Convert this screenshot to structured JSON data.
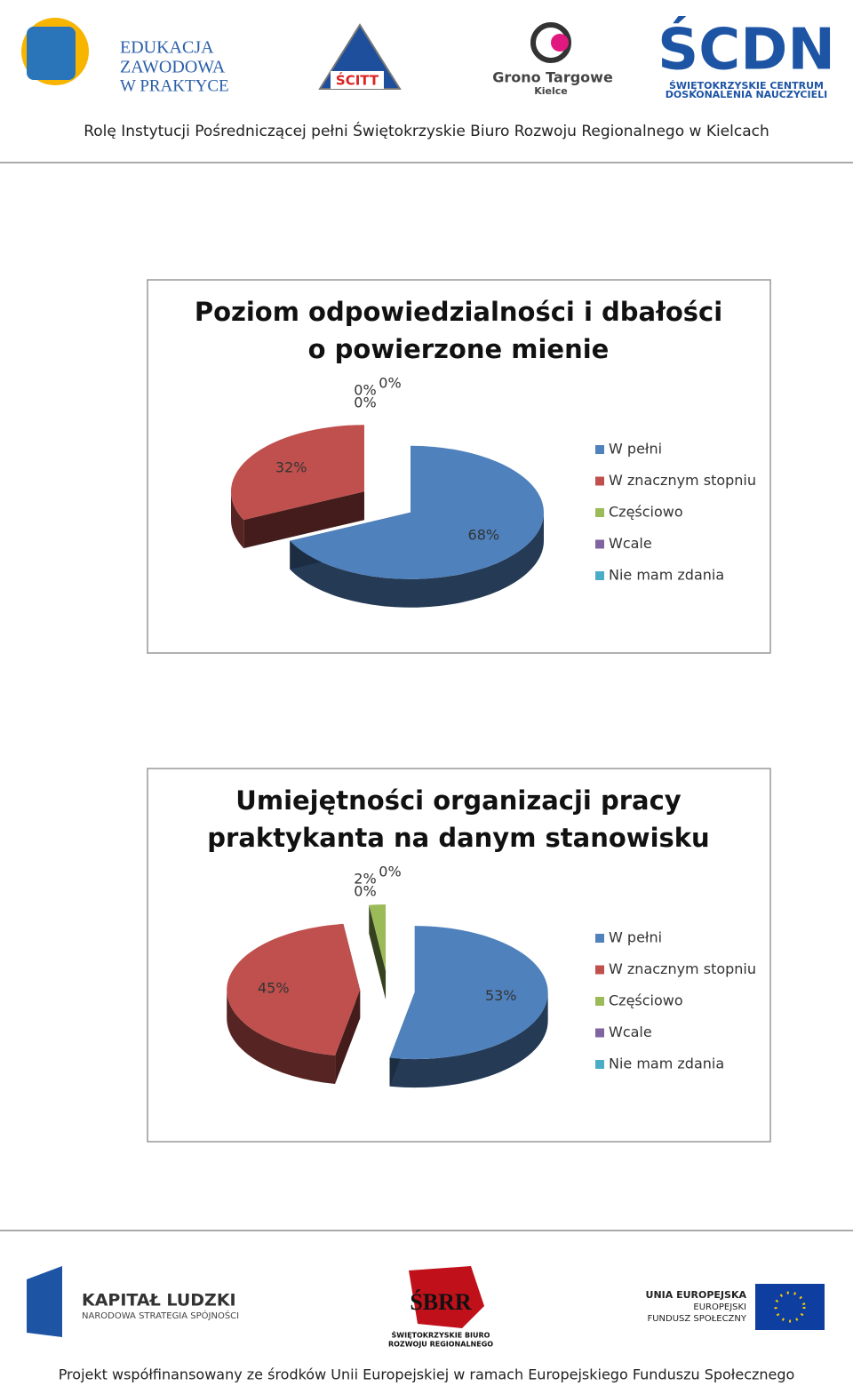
{
  "header": {
    "logos": [
      "EDUKACJA",
      "ZAWODOWA",
      "W PRAKTYCE",
      "ŚCITT",
      "Grono Targowe",
      "Kielce",
      "ŚCDN",
      "ŚWIĘTOKRZYSKIE CENTRUM",
      "DOSKONALENIA NAUCZYCIELI"
    ],
    "text": "Rolę Instytucji Pośredniczącej pełni Świętokrzyskie Biuro Rozwoju Regionalnego w Kielcach"
  },
  "chart_data": [
    {
      "type": "pie",
      "title": [
        "Poziom odpowiedzialności i dbałości",
        "o powierzone mienie"
      ],
      "categories": [
        "W pełni",
        "W znacznym stopniu",
        "Częściowo",
        "Wcale",
        "Nie mam zdania"
      ],
      "values": [
        68,
        32,
        0,
        0,
        0
      ],
      "value_labels": [
        "68%",
        "32%",
        "0%",
        "0%",
        "0%"
      ],
      "colors": [
        "#4f81bd",
        "#c0504d",
        "#9bbb59",
        "#8064a2",
        "#4bacc6"
      ],
      "legend": "right"
    },
    {
      "type": "pie",
      "title": [
        "Umiejętności organizacji pracy",
        "praktykanta na danym stanowisku"
      ],
      "categories": [
        "W pełni",
        "W znacznym stopniu",
        "Częściowo",
        "Wcale",
        "Nie mam zdania"
      ],
      "values": [
        53,
        45,
        2,
        0,
        0
      ],
      "value_labels": [
        "53%",
        "45%",
        "2%",
        "0%",
        "0%"
      ],
      "colors": [
        "#4f81bd",
        "#c0504d",
        "#9bbb59",
        "#8064a2",
        "#4bacc6"
      ],
      "legend": "right"
    }
  ],
  "footer": {
    "logos": [
      "KAPITAŁ LUDZKI",
      "NARODOWA STRATEGIA SPÓJNOŚCI",
      "ŚBRR",
      "ŚWIĘTOKRZYSKIE BIURO",
      "ROZWOJU REGIONALNEGO",
      "UNIA EUROPEJSKA",
      "EUROPEJSKI",
      "FUNDUSZ SPOŁECZNY"
    ],
    "text": "Projekt współfinansowany ze środków Unii Europejskiej w ramach Europejskiego Funduszu Społecznego"
  }
}
